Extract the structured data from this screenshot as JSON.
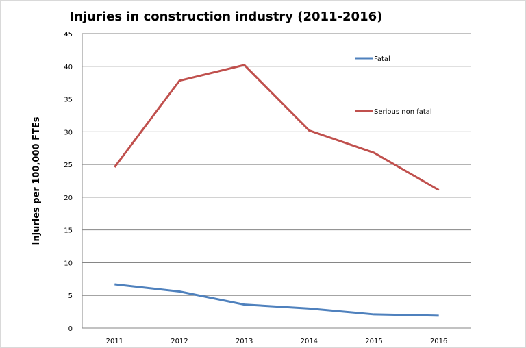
{
  "chart_data": {
    "type": "line",
    "title": "Injuries in construction industry (2011-2016)",
    "xlabel": "",
    "ylabel": "Injuries per 100,000 FTEs",
    "categories": [
      "2011",
      "2012",
      "2013",
      "2014",
      "2015",
      "2016"
    ],
    "ylim": [
      0,
      45
    ],
    "yticks": [
      0,
      5,
      10,
      15,
      20,
      25,
      30,
      35,
      40,
      45
    ],
    "grid": true,
    "legend_placement": "right",
    "series": [
      {
        "name": "Fatal",
        "color": "#4f81bd",
        "values": [
          6.7,
          5.6,
          3.6,
          3.0,
          2.1,
          1.9
        ]
      },
      {
        "name": "Serious non fatal",
        "color": "#c0504d",
        "values": [
          24.6,
          37.8,
          40.2,
          30.2,
          26.8,
          21.1
        ]
      }
    ]
  }
}
